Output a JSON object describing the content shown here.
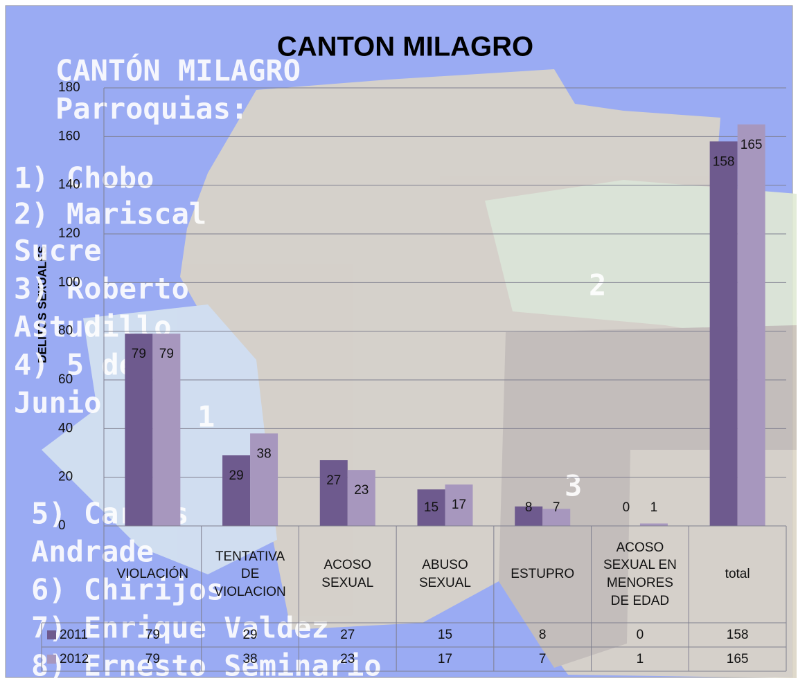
{
  "chart_data": {
    "type": "bar",
    "title": "CANTON MILAGRO",
    "y_label": "DELITOS SEXUALES",
    "categories": [
      "VIOLACIÓN",
      "TENTATIVA DE VIOLACION",
      "ACOSO SEXUAL",
      "ABUSO SEXUAL",
      "ESTUPRO",
      "ACOSO SEXUAL EN MENORES DE EDAD",
      "total"
    ],
    "series": [
      {
        "name": "2011",
        "color": "#6e5a8e",
        "values": [
          79,
          29,
          27,
          15,
          8,
          0,
          158
        ]
      },
      {
        "name": "2012",
        "color": "#a797be",
        "values": [
          79,
          38,
          23,
          17,
          7,
          1,
          165
        ]
      }
    ],
    "ylim": [
      0,
      180
    ],
    "yticks": [
      0,
      20,
      40,
      60,
      80,
      100,
      120,
      140,
      160,
      180
    ],
    "grid": true,
    "data_table": true,
    "annotations": [
      "CANTÓN MILAGRO",
      "Parroquias:",
      "1) Chobo",
      "2) Mariscal",
      "Sucre",
      "3) Roberto",
      "Astudillo",
      "4) 5 de",
      "Junio",
      "5) Carlos",
      "Andrade",
      "6) Chirijos",
      "7) Enrique Valdez",
      "8) Ernesto Seminario",
      "1",
      "2",
      "3"
    ]
  }
}
